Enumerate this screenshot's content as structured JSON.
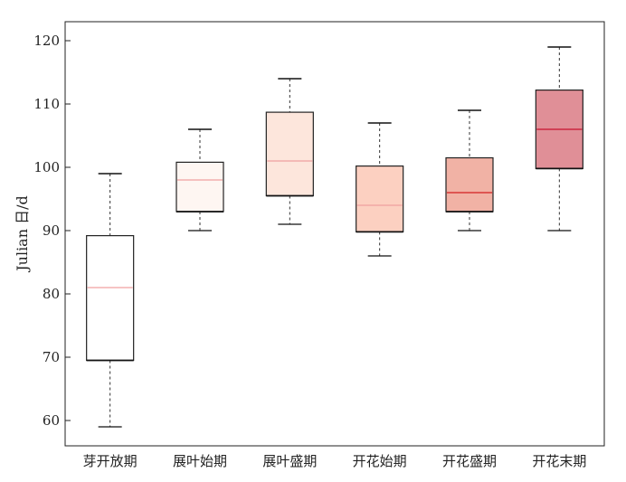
{
  "chart_data": {
    "type": "box",
    "title": "",
    "xlabel": "",
    "ylabel": "Julian 日/d",
    "ylim": [
      56,
      123
    ],
    "yticks": [
      60,
      70,
      80,
      90,
      100,
      110,
      120
    ],
    "grid": false,
    "categories": [
      "芽开放期",
      "展叶始期",
      "展叶盛期",
      "开花始期",
      "开花盛期",
      "开花末期"
    ],
    "boxes": [
      {
        "whisker_low": 59,
        "q1": 69.5,
        "median": 81,
        "q3": 89.2,
        "whisker_high": 99,
        "fill": "#ffffff",
        "median_color": "#f0a0a0"
      },
      {
        "whisker_low": 90,
        "q1": 93,
        "median": 98,
        "q3": 100.8,
        "whisker_high": 106,
        "fill": "#fef6f2",
        "median_color": "#f0a0a0"
      },
      {
        "whisker_low": 91,
        "q1": 95.5,
        "median": 101,
        "q3": 108.7,
        "whisker_high": 114,
        "fill": "#fde6dc",
        "median_color": "#f0a0a0"
      },
      {
        "whisker_low": 86,
        "q1": 89.8,
        "median": 94,
        "q3": 100.2,
        "whisker_high": 107,
        "fill": "#fcd0c1",
        "median_color": "#f0a0a0"
      },
      {
        "whisker_low": 90,
        "q1": 93,
        "median": 96,
        "q3": 101.5,
        "whisker_high": 109,
        "fill": "#f1b2a5",
        "median_color": "#d42020"
      },
      {
        "whisker_low": 90,
        "q1": 99.8,
        "median": 106,
        "q3": 112.2,
        "whisker_high": 119,
        "fill": "#e08f97",
        "median_color": "#c8102e"
      }
    ]
  }
}
